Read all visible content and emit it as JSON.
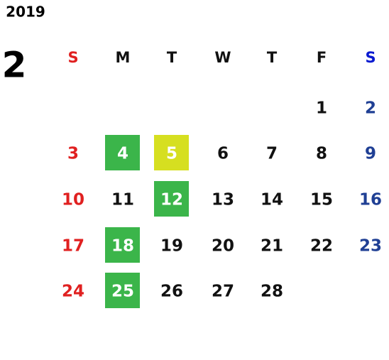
{
  "year": "2019",
  "month": "2",
  "weekdays": [
    "S",
    "M",
    "T",
    "W",
    "T",
    "F",
    "S"
  ],
  "weeks": [
    [
      null,
      null,
      null,
      null,
      null,
      1,
      2
    ],
    [
      3,
      4,
      5,
      6,
      7,
      8,
      9
    ],
    [
      10,
      11,
      12,
      13,
      14,
      15,
      16
    ],
    [
      17,
      18,
      19,
      20,
      21,
      22,
      23
    ],
    [
      24,
      25,
      26,
      27,
      28,
      null,
      null
    ]
  ],
  "sunday_color": "#e02020",
  "saturday_header_color": "#0a1ad0",
  "saturday_color": "#1f3f94",
  "weekday_color": "#111111",
  "highlights": {
    "4": "#3bb54a",
    "5": "#d6df20",
    "12": "#3bb54a",
    "18": "#3bb54a",
    "25": "#3bb54a"
  },
  "highlight_text_color": "#ffffff"
}
